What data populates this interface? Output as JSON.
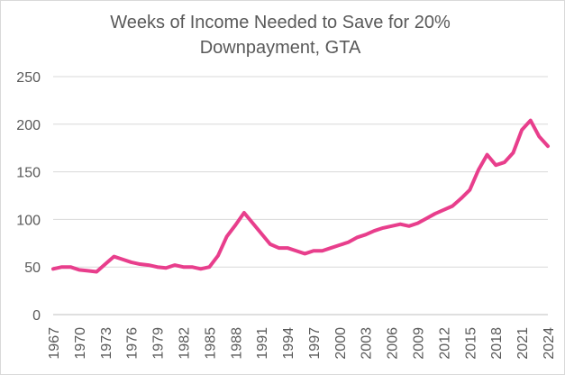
{
  "chart_data": {
    "type": "line",
    "title": "Weeks of Income Needed to Save for 20% Downpayment, GTA",
    "title_lines": [
      "Weeks of Income Needed to Save for 20%",
      "Downpayment, GTA"
    ],
    "xlabel": "",
    "ylabel": "",
    "ylim": [
      0,
      250
    ],
    "yticks": [
      0,
      50,
      100,
      150,
      200,
      250
    ],
    "xlim": [
      1967,
      2024
    ],
    "xticks": [
      1967,
      1970,
      1973,
      1976,
      1979,
      1982,
      1985,
      1988,
      1991,
      1994,
      1997,
      2000,
      2003,
      2006,
      2009,
      2012,
      2015,
      2018,
      2021,
      2024
    ],
    "grid": "horizontal",
    "legend": "none",
    "color": "#e83e8c",
    "x": [
      1967,
      1968,
      1969,
      1970,
      1971,
      1972,
      1973,
      1974,
      1975,
      1976,
      1977,
      1978,
      1979,
      1980,
      1981,
      1982,
      1983,
      1984,
      1985,
      1986,
      1987,
      1988,
      1989,
      1990,
      1991,
      1992,
      1993,
      1994,
      1995,
      1996,
      1997,
      1998,
      1999,
      2000,
      2001,
      2002,
      2003,
      2004,
      2005,
      2006,
      2007,
      2008,
      2009,
      2010,
      2011,
      2012,
      2013,
      2014,
      2015,
      2016,
      2017,
      2018,
      2019,
      2020,
      2021,
      2022,
      2023,
      2024
    ],
    "series": [
      {
        "values": [
          48,
          50,
          50,
          47,
          46,
          45,
          53,
          61,
          58,
          55,
          53,
          52,
          50,
          49,
          52,
          50,
          50,
          48,
          50,
          62,
          82,
          94,
          107,
          96,
          85,
          74,
          70,
          70,
          67,
          64,
          67,
          67,
          70,
          73,
          76,
          81,
          84,
          88,
          91,
          93,
          95,
          93,
          96,
          101,
          106,
          110,
          114,
          122,
          131,
          152,
          168,
          157,
          160,
          170,
          194,
          204,
          187,
          177
        ]
      }
    ]
  }
}
